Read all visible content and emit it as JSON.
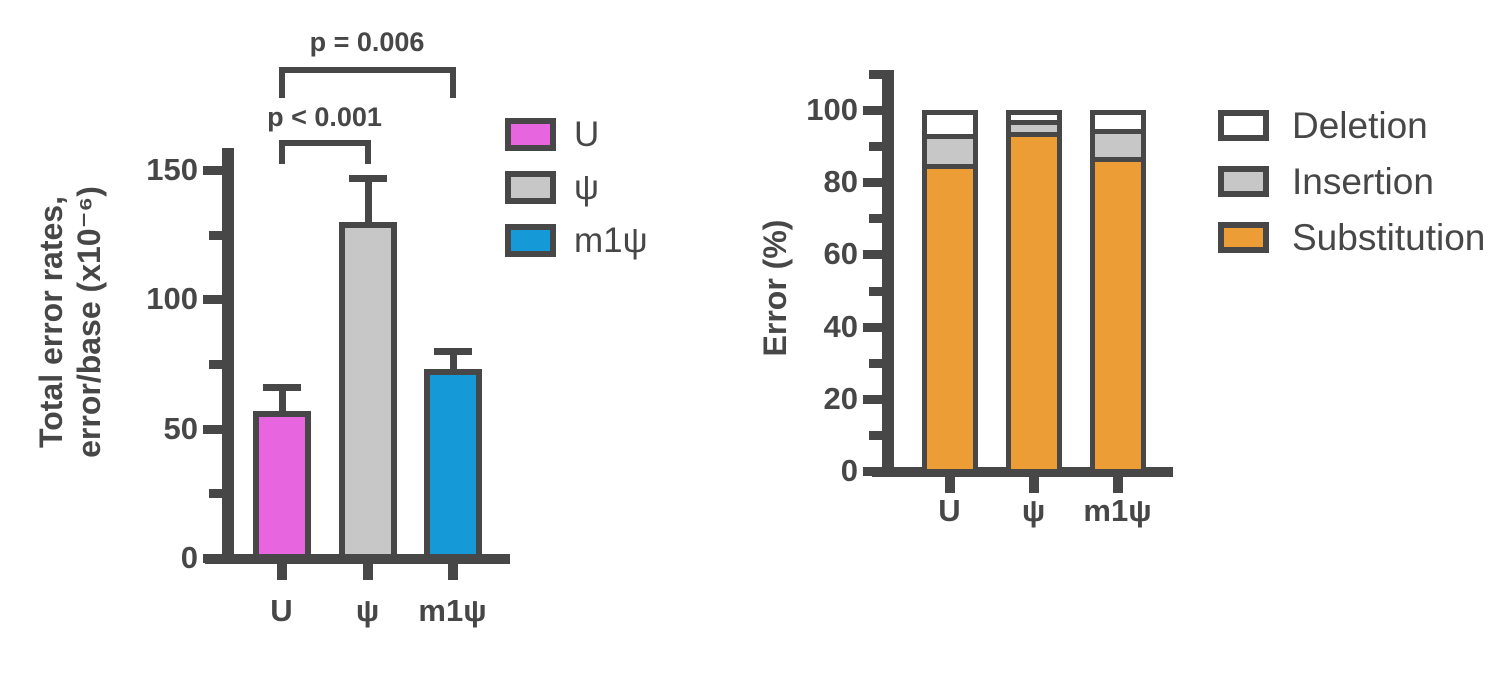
{
  "figure": {
    "background": "#FFFFFF",
    "axis_color": "#474747",
    "text_color": "#474747"
  },
  "chart_data": [
    {
      "id": "total-error-rates",
      "type": "bar",
      "ylabel_line1": "Total error rates,",
      "ylabel_line2": "error/base (x10⁻⁶)",
      "categories": [
        "U",
        "ψ",
        "m1ψ"
      ],
      "values": [
        57,
        130,
        73
      ],
      "error_plus": [
        9,
        17,
        7
      ],
      "bar_colors": [
        "#E765DF",
        "#C7C7C7",
        "#1599D7"
      ],
      "ylim": [
        0,
        160
      ],
      "yticks": [
        0,
        50,
        100,
        150
      ],
      "minor_yticks": [
        25,
        75,
        125
      ],
      "grid": false,
      "legend_position": "right",
      "legend": [
        {
          "label": "U",
          "color": "#E765DF"
        },
        {
          "label": "ψ",
          "color": "#C7C7C7"
        },
        {
          "label": "m1ψ",
          "color": "#1599D7"
        }
      ],
      "annotations": [
        {
          "label": "p < 0.001",
          "from": 0,
          "to": 1
        },
        {
          "label": "p = 0.006",
          "from": 0,
          "to": 2
        }
      ]
    },
    {
      "id": "error-breakdown",
      "type": "stacked-bar",
      "ylabel": "Error (%)",
      "categories": [
        "U",
        "ψ",
        "m1ψ"
      ],
      "series": [
        {
          "name": "Substitution",
          "color": "#EC9D35",
          "values": [
            85.5,
            94.5,
            87.5
          ]
        },
        {
          "name": "Insertion",
          "color": "#C7C7C7",
          "values": [
            8.5,
            3.5,
            8
          ]
        },
        {
          "name": "Deletion",
          "color": "#FFFFFF",
          "values": [
            6,
            2,
            4.5
          ]
        }
      ],
      "ylim": [
        0,
        110
      ],
      "yticks": [
        0,
        20,
        40,
        60,
        80,
        100
      ],
      "minor_yticks": [
        10,
        30,
        50,
        70,
        90,
        110
      ],
      "grid": false,
      "legend_position": "right",
      "legend": [
        {
          "label": "Deletion",
          "color": "#FFFFFF"
        },
        {
          "label": "Insertion",
          "color": "#C7C7C7"
        },
        {
          "label": "Substitution",
          "color": "#EC9D35"
        }
      ]
    }
  ]
}
